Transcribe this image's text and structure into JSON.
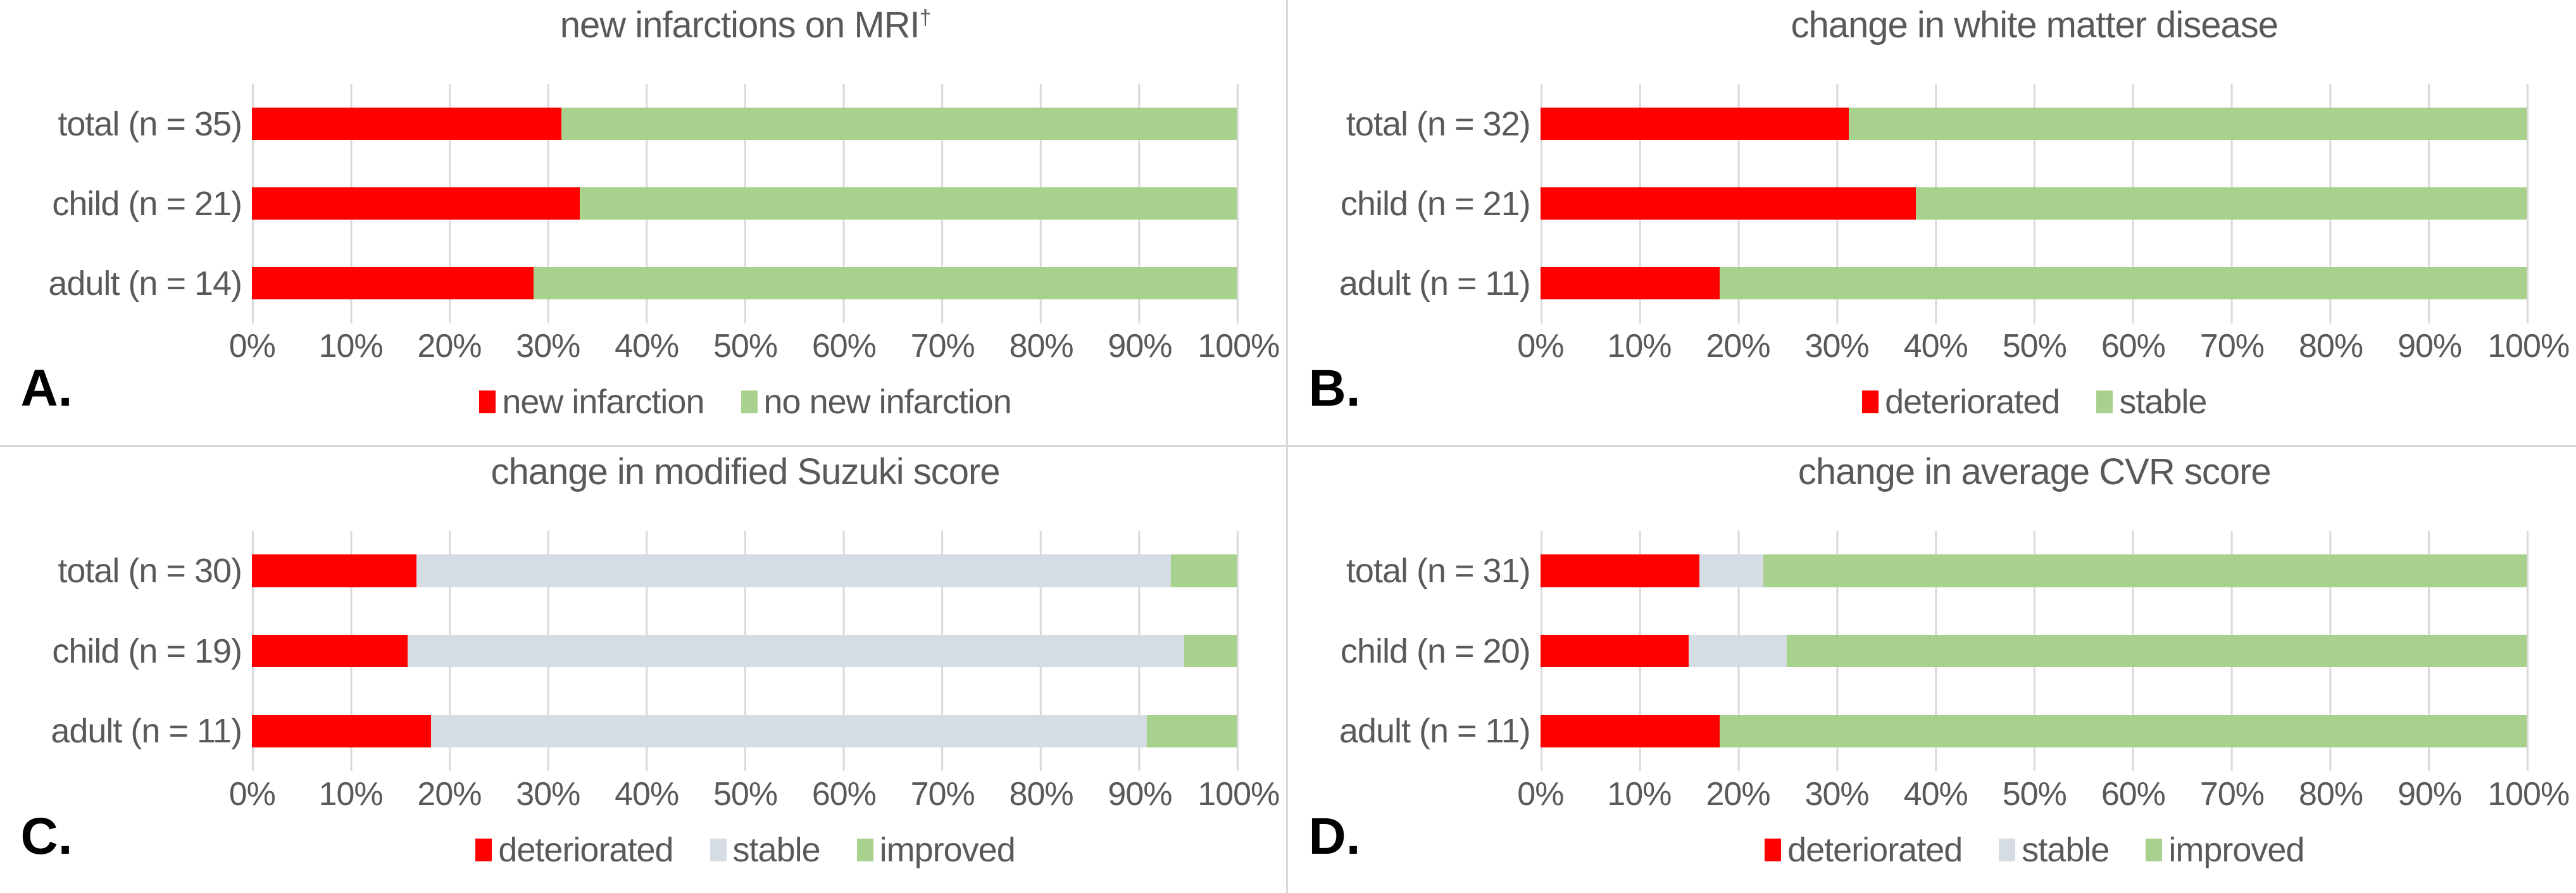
{
  "colors": {
    "deteriorated_red": "#ff0000",
    "improved_green": "#a9d18e",
    "stable_gray": "#d6dce4",
    "text_gray": "#595959",
    "gridline": "#d9d9d9",
    "panel_letter_black": "#000000"
  },
  "x_ticks": [
    "0%",
    "10%",
    "20%",
    "30%",
    "40%",
    "50%",
    "60%",
    "70%",
    "80%",
    "90%",
    "100%"
  ],
  "chart_data": [
    {
      "type": "bar",
      "orientation": "horizontal",
      "stacked": true,
      "panel_letter": "A.",
      "title": "new infarctions on MRI",
      "title_suffix": "†",
      "categories": [
        "total (n = 35)",
        "child (n = 21)",
        "adult (n = 14)"
      ],
      "series": [
        {
          "name": "new infarction",
          "color": "#ff0000",
          "values": [
            31.4,
            33.3,
            28.6
          ]
        },
        {
          "name": "no new infarction",
          "color": "#a9d18e",
          "values": [
            68.6,
            66.7,
            71.4
          ]
        }
      ],
      "xlim": [
        0,
        100
      ],
      "grid": true,
      "legend_position": "bottom"
    },
    {
      "type": "bar",
      "orientation": "horizontal",
      "stacked": true,
      "panel_letter": "B.",
      "title": "change in white matter disease",
      "title_suffix": "",
      "categories": [
        "total (n = 32)",
        "child (n = 21)",
        "adult (n = 11)"
      ],
      "series": [
        {
          "name": "deteriorated",
          "color": "#ff0000",
          "values": [
            31.3,
            38.1,
            18.2
          ]
        },
        {
          "name": "stable",
          "color": "#a9d18e",
          "values": [
            68.7,
            61.9,
            81.8
          ]
        }
      ],
      "xlim": [
        0,
        100
      ],
      "grid": true,
      "legend_position": "bottom"
    },
    {
      "type": "bar",
      "orientation": "horizontal",
      "stacked": true,
      "panel_letter": "C.",
      "title": "change in modified Suzuki score",
      "title_suffix": "",
      "categories": [
        "total (n = 30)",
        "child (n = 19)",
        "adult (n = 11)"
      ],
      "series": [
        {
          "name": "deteriorated",
          "color": "#ff0000",
          "values": [
            16.7,
            15.8,
            18.2
          ]
        },
        {
          "name": "stable",
          "color": "#d6dce4",
          "values": [
            76.6,
            78.9,
            72.7
          ]
        },
        {
          "name": "improved",
          "color": "#a9d18e",
          "values": [
            6.7,
            5.3,
            9.1
          ]
        }
      ],
      "xlim": [
        0,
        100
      ],
      "grid": true,
      "legend_position": "bottom"
    },
    {
      "type": "bar",
      "orientation": "horizontal",
      "stacked": true,
      "panel_letter": "D.",
      "title": "change in average CVR score",
      "title_suffix": "",
      "categories": [
        "total (n = 31)",
        "child (n = 20)",
        "adult (n = 11)"
      ],
      "series": [
        {
          "name": "deteriorated",
          "color": "#ff0000",
          "values": [
            16.1,
            15.0,
            18.2
          ]
        },
        {
          "name": "stable",
          "color": "#d6dce4",
          "values": [
            6.5,
            10.0,
            0.0
          ]
        },
        {
          "name": "improved",
          "color": "#a9d18e",
          "values": [
            77.4,
            75.0,
            81.8
          ]
        }
      ],
      "xlim": [
        0,
        100
      ],
      "grid": true,
      "legend_position": "bottom"
    }
  ]
}
